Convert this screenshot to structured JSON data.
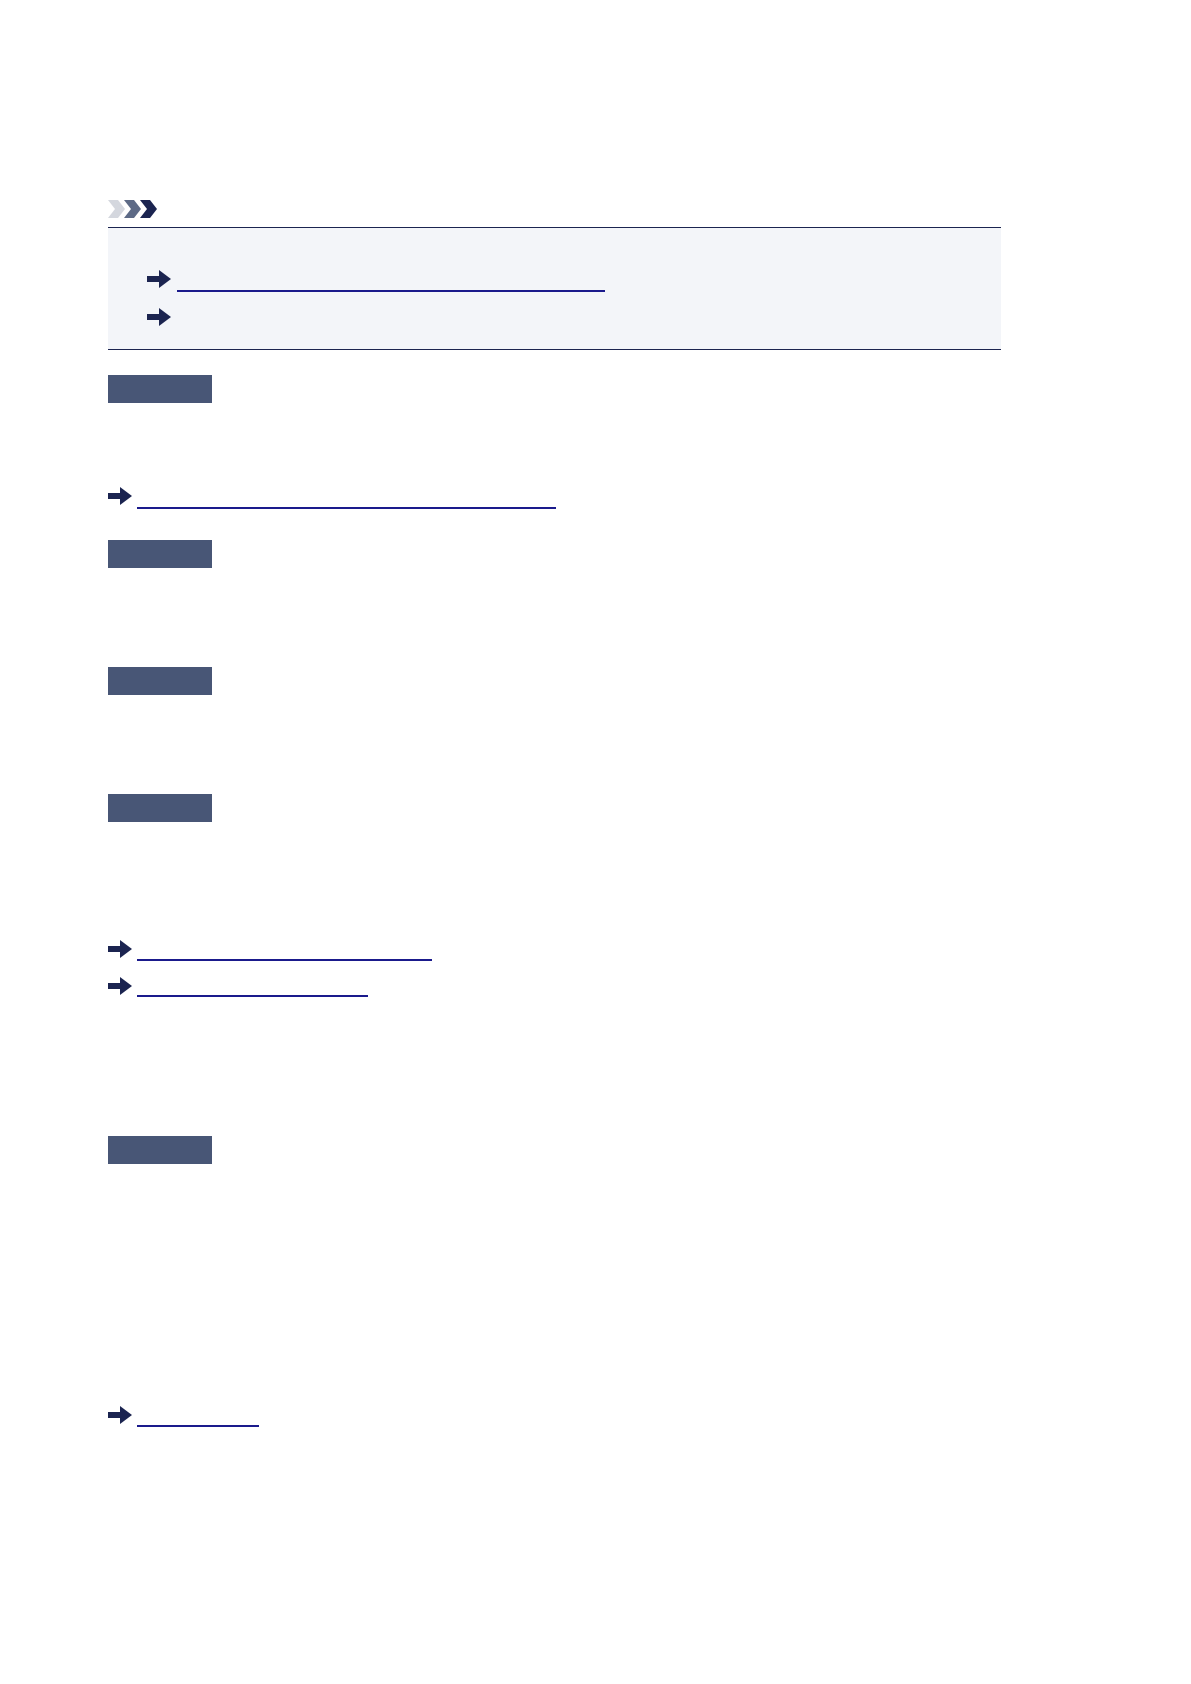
{
  "colors": {
    "heading_bar": "#485676",
    "note_background": "#f3f5f9",
    "rule": "#1b2450",
    "link_underline": "#1a1a8c",
    "arrow": "#1b2450"
  },
  "icons": {
    "note": "note-chevrons-icon",
    "link": "right-arrow-icon"
  }
}
